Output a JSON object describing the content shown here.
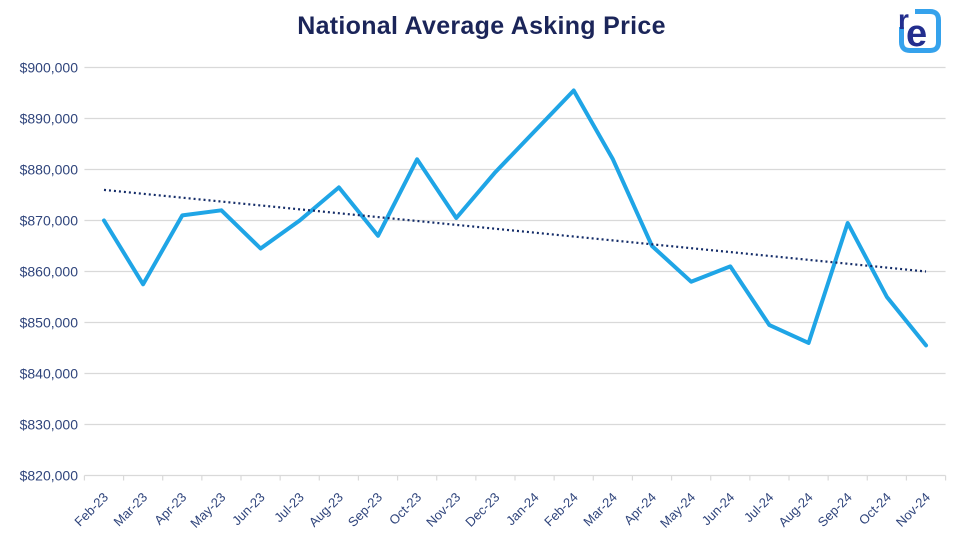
{
  "header": {
    "title_color": "#1b2559"
  },
  "logo": {
    "letter_r": "r",
    "letter_e": "e",
    "square_color": "#35a2ec",
    "letter_color": "#232e8e"
  },
  "chart_data": {
    "type": "line",
    "title": "National Average Asking Price",
    "xlabel": "",
    "ylabel": "",
    "grid": true,
    "gridline_color": "#d9d9d9",
    "legend": "none",
    "categories": [
      "Feb-23",
      "Mar-23",
      "Apr-23",
      "May-23",
      "Jun-23",
      "Jul-23",
      "Aug-23",
      "Sep-23",
      "Oct-23",
      "Nov-23",
      "Dec-23",
      "Jan-24",
      "Feb-24",
      "Mar-24",
      "Apr-24",
      "May-24",
      "Jun-24",
      "Jul-24",
      "Aug-24",
      "Sep-24",
      "Oct-24",
      "Nov-24"
    ],
    "series": [
      {
        "name": "National average asking price",
        "style": "solid",
        "color": "#1fa5e6",
        "values": [
          870000,
          857500,
          871000,
          872000,
          864500,
          870000,
          876500,
          867000,
          882000,
          870500,
          879500,
          887500,
          895500,
          882000,
          865000,
          858000,
          861000,
          849500,
          846000,
          869500,
          855000,
          845500
        ]
      },
      {
        "name": "Linear trendline",
        "style": "dotted",
        "color": "#152d69",
        "start_value": 876000,
        "end_value": 860000
      }
    ],
    "y_axis": {
      "min": 820000,
      "max": 900000,
      "step": 10000,
      "tick_labels": [
        "$900,000",
        "$890,000",
        "$880,000",
        "$870,000",
        "$860,000",
        "$850,000",
        "$840,000",
        "$830,000",
        "$820,000"
      ]
    }
  }
}
